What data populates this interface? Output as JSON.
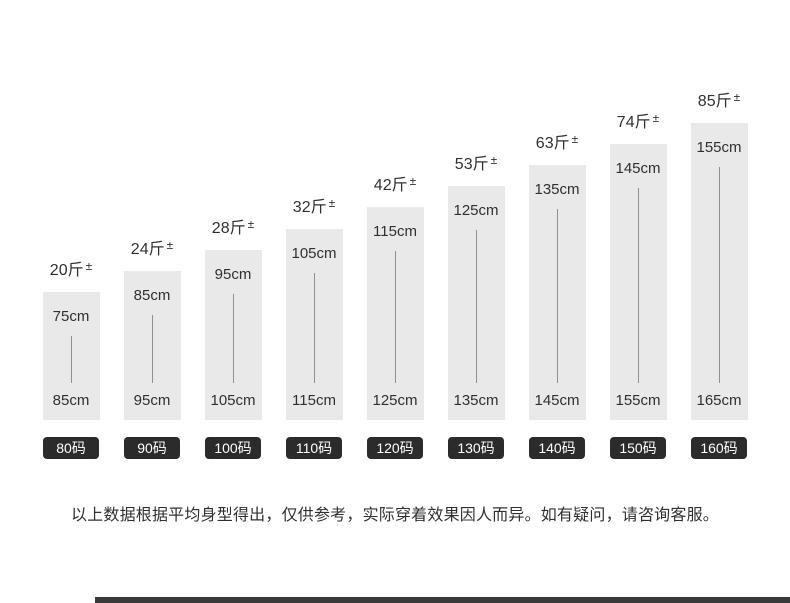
{
  "chart_data": {
    "type": "bar",
    "title": "",
    "categories": [
      "80码",
      "90码",
      "100码",
      "110码",
      "120码",
      "130码",
      "140码",
      "150码",
      "160码"
    ],
    "series": [
      {
        "name": "weight_jin",
        "values": [
          20,
          24,
          28,
          32,
          42,
          53,
          63,
          74,
          85
        ]
      },
      {
        "name": "height_min_cm",
        "values": [
          75,
          85,
          95,
          105,
          115,
          125,
          135,
          145,
          155
        ]
      },
      {
        "name": "height_max_cm",
        "values": [
          85,
          95,
          105,
          115,
          125,
          135,
          145,
          155,
          165
        ]
      }
    ],
    "legend_position": "none",
    "grid": false,
    "ylim_cm": [
      85,
      165
    ]
  },
  "bars": [
    {
      "size": "80码",
      "weight": "20斤",
      "height_top": "75cm",
      "height_bottom": "85cm"
    },
    {
      "size": "90码",
      "weight": "24斤",
      "height_top": "85cm",
      "height_bottom": "95cm"
    },
    {
      "size": "100码",
      "weight": "28斤",
      "height_top": "95cm",
      "height_bottom": "105cm"
    },
    {
      "size": "110码",
      "weight": "32斤",
      "height_top": "105cm",
      "height_bottom": "115cm"
    },
    {
      "size": "120码",
      "weight": "42斤",
      "height_top": "115cm",
      "height_bottom": "125cm"
    },
    {
      "size": "130码",
      "weight": "53斤",
      "height_top": "125cm",
      "height_bottom": "135cm"
    },
    {
      "size": "140码",
      "weight": "63斤",
      "height_top": "135cm",
      "height_bottom": "145cm"
    },
    {
      "size": "150码",
      "weight": "74斤",
      "height_top": "145cm",
      "height_bottom": "155cm"
    },
    {
      "size": "160码",
      "weight": "85斤",
      "height_top": "155cm",
      "height_bottom": "165cm"
    }
  ],
  "plus_minus": "±",
  "note": "以上数据根据平均身型得出，仅供参考，实际穿着效果因人而异。如有疑问，请咨询客服。",
  "colors": {
    "bar_fill": "#e9e9e9",
    "range_line": "#909090",
    "badge_bg": "#2b2b2b",
    "badge_text": "#ffffff",
    "text": "#303030",
    "footer_strip": "#3a3a3a",
    "background": "#ffffff"
  }
}
